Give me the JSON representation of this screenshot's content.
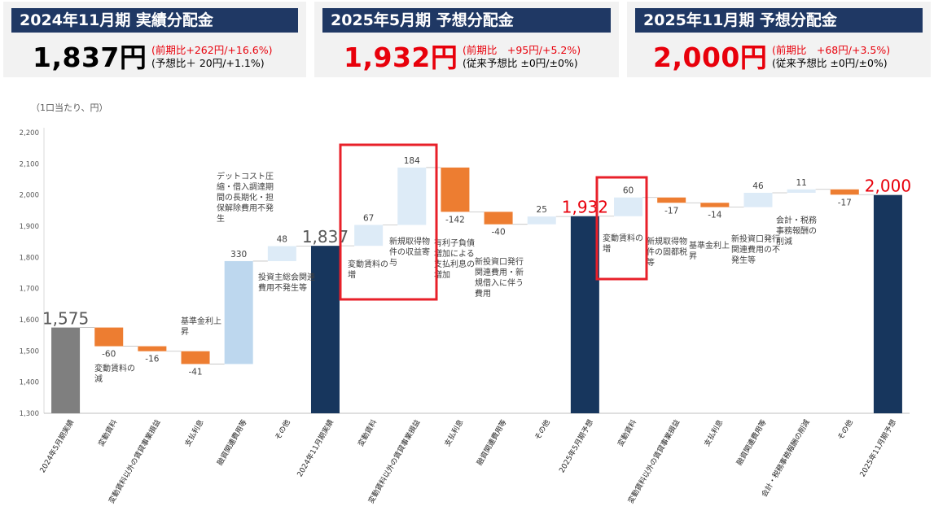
{
  "panels": [
    {
      "title": "2024年11月期 実績分配金",
      "value": "1,837円",
      "line1": "(前期比+262円/+16.6%)",
      "line2": "(予想比＋ 20円/+1.1%)",
      "value_color": "#000000"
    },
    {
      "title": "2025年5月期 予想分配金",
      "value": "1,932円",
      "line1": "(前期比　+95円/+5.2%)",
      "line2": "(従来予想比 ±0円/±0%)",
      "value_color": "#e8000b"
    },
    {
      "title": "2025年11月期 予想分配金",
      "value": "2,000円",
      "line1": "(前期比　+68円/+3.5%)",
      "line2": "(従来予想比 ±0円/±0%)",
      "value_color": "#e8000b"
    }
  ],
  "unit_label": "（1口当たり、円）",
  "colors": {
    "total_gray": "#7f7f7f",
    "total_navy": "#17365d",
    "increase_light": "#ddebf7",
    "increase_blue": "#bdd7ee",
    "decrease": "#ed7d31",
    "highlight_box": "#e8202a",
    "red_text": "#e8000b"
  },
  "chart_data": {
    "type": "waterfall",
    "ylim": [
      1300,
      2200
    ],
    "yticks": [
      1300,
      1400,
      1500,
      1600,
      1700,
      1800,
      1900,
      2000,
      2100,
      2200
    ],
    "grid": false,
    "categories": [
      "2024年5月期実績",
      "変動賃料",
      "変動賃料以外の賃貸事業損益",
      "支払利息",
      "融資関連費用等",
      "その他",
      "2024年11月期実績",
      "変動賃料",
      "変動賃料以外の賃貸事業損益",
      "支払利息",
      "融資関連費用等",
      "その他",
      "2025年5月期予想",
      "変動賃料",
      "変動賃料以外の賃貸事業損益",
      "支払利息",
      "融資関連費用等",
      "会計・税務事務報酬の削減",
      "その他",
      "2025年11月期予想"
    ],
    "bars": [
      {
        "kind": "total",
        "value": 1575,
        "label": "1,575",
        "color": "gray",
        "label_red": false,
        "note": ""
      },
      {
        "kind": "delta",
        "value": -60,
        "label": "-60",
        "color": "decrease",
        "note": "変動賃料の減"
      },
      {
        "kind": "delta",
        "value": -16,
        "label": "-16",
        "color": "decrease",
        "note": ""
      },
      {
        "kind": "delta",
        "value": -41,
        "label": "-41",
        "color": "decrease",
        "note": "基準金利上昇"
      },
      {
        "kind": "delta",
        "value": 330,
        "label": "330",
        "color": "increase_blue",
        "note": "デットコスト圧縮・借入調達期間の長期化・担保解除費用不発生"
      },
      {
        "kind": "delta",
        "value": 48,
        "label": "48",
        "color": "increase_light",
        "note": "投資主総会関連費用不発生等"
      },
      {
        "kind": "total",
        "value": 1837,
        "label": "1,837",
        "color": "navy",
        "label_red": false,
        "note": ""
      },
      {
        "kind": "delta",
        "value": 67,
        "label": "67",
        "color": "increase_light",
        "note": "変動賃料の増"
      },
      {
        "kind": "delta",
        "value": 184,
        "label": "184",
        "color": "increase_light",
        "note": "新規取得物件の収益寄与"
      },
      {
        "kind": "delta",
        "value": -142,
        "label": "-142",
        "color": "decrease",
        "note": "有利子負債増加による支払利息の増加"
      },
      {
        "kind": "delta",
        "value": -40,
        "label": "-40",
        "color": "decrease",
        "note": "新投資口発行関連費用・新規借入に伴う費用"
      },
      {
        "kind": "delta",
        "value": 25,
        "label": "25",
        "color": "increase_light",
        "note": ""
      },
      {
        "kind": "total",
        "value": 1932,
        "label": "1,932",
        "color": "navy",
        "label_red": true,
        "note": ""
      },
      {
        "kind": "delta",
        "value": 60,
        "label": "60",
        "color": "increase_light",
        "note": "変動賃料の増"
      },
      {
        "kind": "delta",
        "value": -17,
        "label": "-17",
        "color": "decrease",
        "note": "新規取得物件の固都税等"
      },
      {
        "kind": "delta",
        "value": -14,
        "label": "-14",
        "color": "decrease",
        "note": "基準金利上昇"
      },
      {
        "kind": "delta",
        "value": 46,
        "label": "46",
        "color": "increase_light",
        "note": "新投資口発行関連費用の不発生等"
      },
      {
        "kind": "delta",
        "value": 11,
        "label": "11",
        "color": "increase_light",
        "note": "会計・税務事務報酬の削減"
      },
      {
        "kind": "delta",
        "value": -17,
        "label": "-17",
        "color": "decrease",
        "note": ""
      },
      {
        "kind": "total",
        "value": 2000,
        "label": "2,000",
        "color": "navy",
        "label_red": true,
        "note": ""
      }
    ]
  }
}
